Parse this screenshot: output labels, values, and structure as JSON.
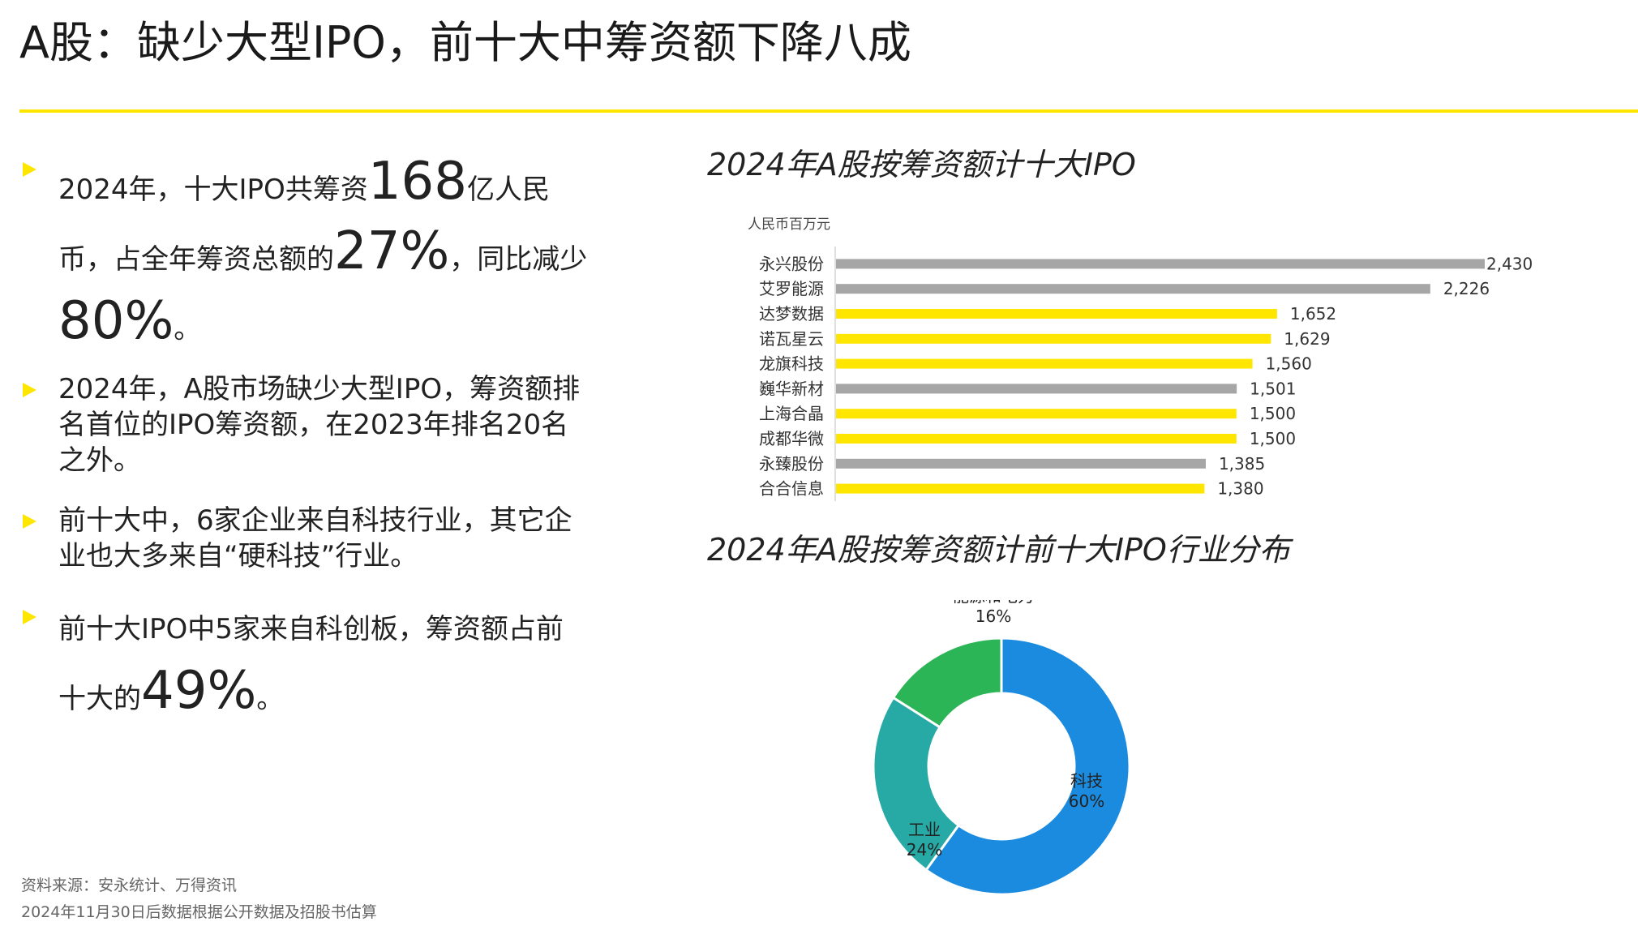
{
  "slide": {
    "title": "A股：缺少大型IPO，前十大中筹资额下降八成",
    "source_line1": "资料来源：安永统计、万得资讯",
    "source_line2": "2024年11月30日后数据根据公开数据及招股书估算"
  },
  "bullets": [
    {
      "parts": [
        {
          "text": "2024年，十大IPO共筹资",
          "big": false
        },
        {
          "text": "168",
          "big": true
        },
        {
          "text": "亿人民币，占全年筹资总额的",
          "big": false
        },
        {
          "text": "27%",
          "big": true
        },
        {
          "text": "，同比减少",
          "big": false
        },
        {
          "text": "80%",
          "big": true
        },
        {
          "text": "。",
          "big": false
        }
      ]
    },
    {
      "parts": [
        {
          "text": "2024年，A股市场缺少大型IPO，筹资额排名首位的IPO筹资额，在2023年排名20名之外。",
          "big": false
        }
      ]
    },
    {
      "parts": [
        {
          "text": "前十大中，6家企业来自科技行业，其它企业也大多来自“硬科技”行业。",
          "big": false
        }
      ]
    },
    {
      "parts": [
        {
          "text": "前十大IPO中5家来自科创板，筹资额占前十大的",
          "big": false
        },
        {
          "text": "49%",
          "big": true
        },
        {
          "text": "。",
          "big": false
        }
      ]
    }
  ],
  "colors": {
    "accent_yellow": "#ffe600",
    "bar_gray": "#a6a6a6",
    "tech_blue": "#1b8be0",
    "industry_teal": "#27a9a5",
    "energy_green": "#2bb556"
  },
  "chart_data": [
    {
      "type": "bar",
      "orientation": "horizontal",
      "title": "2024年A股按筹资额计十大IPO",
      "unit": "人民币百万元",
      "categories": [
        "永兴股份",
        "艾罗能源",
        "达梦数据",
        "诺瓦星云",
        "龙旗科技",
        "巍华新材",
        "上海合晶",
        "成都华微",
        "永臻股份",
        "合合信息"
      ],
      "values": [
        2430,
        2226,
        1652,
        1629,
        1560,
        1501,
        1500,
        1500,
        1385,
        1380
      ],
      "value_labels": [
        "2,430",
        "2,226",
        "1,652",
        "1,629",
        "1,560",
        "1,501",
        "1,500",
        "1,500",
        "1,385",
        "1,380"
      ],
      "bar_colors": [
        "#a6a6a6",
        "#a6a6a6",
        "#ffe600",
        "#ffe600",
        "#ffe600",
        "#a6a6a6",
        "#ffe600",
        "#ffe600",
        "#a6a6a6",
        "#ffe600"
      ],
      "xlim": [
        0,
        2430
      ]
    },
    {
      "type": "pie",
      "donut": true,
      "title": "2024年A股按筹资额计前十大IPO行业分布",
      "slices": [
        {
          "name": "科技",
          "value": 60,
          "label": "60%",
          "color": "#1b8be0"
        },
        {
          "name": "工业",
          "value": 24,
          "label": "24%",
          "color": "#27a9a5"
        },
        {
          "name": "能源和电力",
          "value": 16,
          "label": "16%",
          "color": "#2bb556"
        }
      ]
    }
  ]
}
